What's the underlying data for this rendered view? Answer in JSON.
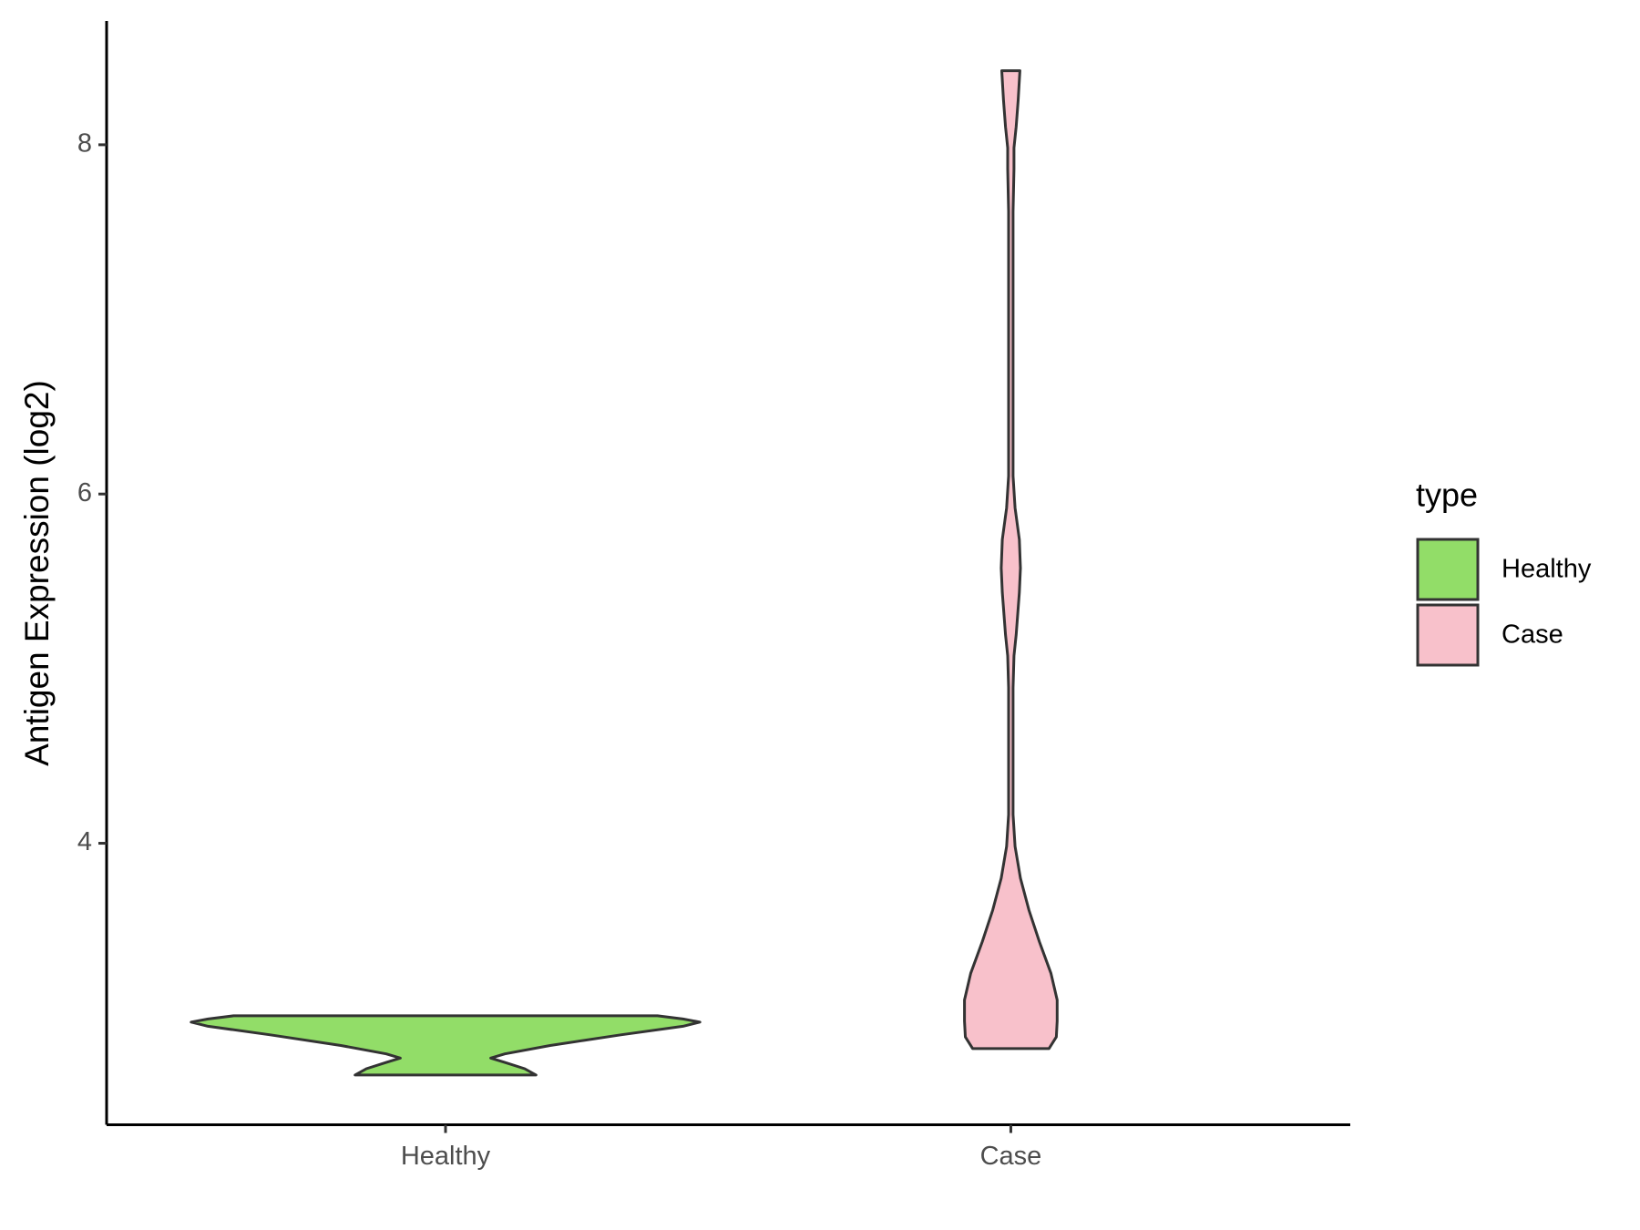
{
  "chart_data": {
    "type": "violin",
    "y_label": "Antigen Expression (log2)",
    "legend_title": "type",
    "categories": [
      "Healthy",
      "Case"
    ],
    "ylim": [
      2.388,
      8.709
    ],
    "yticks": [
      4,
      6,
      8
    ],
    "series": [
      {
        "name": "Healthy",
        "color": "#92dd68",
        "y": [
          3.012,
          2.994,
          2.976,
          2.952,
          2.903,
          2.842,
          2.794,
          2.77,
          2.745,
          2.709,
          2.673
        ],
        "widths": [
          0.75,
          0.84,
          0.9,
          0.84,
          0.62,
          0.37,
          0.21,
          0.16,
          0.21,
          0.28,
          0.32
        ]
      },
      {
        "name": "Case",
        "color": "#f8c1cb",
        "y": [
          2.824,
          2.891,
          2.982,
          3.103,
          3.255,
          3.436,
          3.618,
          3.8,
          3.982,
          4.164,
          4.345,
          4.588,
          4.891,
          5.073,
          5.194,
          5.436,
          5.576,
          5.739,
          5.921,
          6.103,
          6.406,
          7.012,
          7.618,
          7.861,
          7.982,
          8.103,
          8.255,
          8.424
        ],
        "widths": [
          0.135,
          0.161,
          0.164,
          0.164,
          0.142,
          0.101,
          0.064,
          0.034,
          0.015,
          0.008,
          0.008,
          0.008,
          0.008,
          0.011,
          0.019,
          0.03,
          0.034,
          0.03,
          0.015,
          0.008,
          0.008,
          0.008,
          0.008,
          0.011,
          0.011,
          0.019,
          0.026,
          0.032
        ]
      }
    ]
  }
}
